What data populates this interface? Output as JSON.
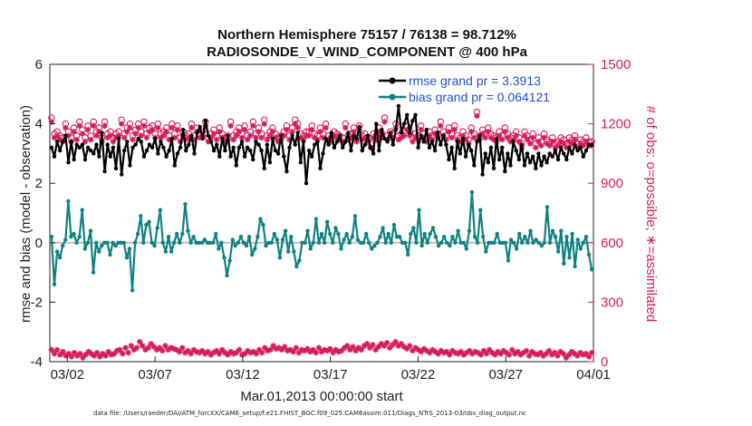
{
  "chart_data": {
    "type": "line",
    "title": "Northern Hemisphere 75157 / 76138 = 98.712%",
    "subtitle": "RADIOSONDE_V_WIND_COMPONENT @ 400 hPa",
    "xlabel": "Mar.01,2013 00:00:00 start",
    "ylabel": "rmse and bias (model - observation)",
    "ylabel_right": "# of obs: o=possible; ∗=assimilated",
    "footer": "data file: /Users/raeder/DAI/ATM_forcXX/CAM6_setup/f.e21.FHIST_BGC.f09_025.CAM6assim.011/Diags_NTrS_2013-03/obs_diag_output.nc",
    "xlim": [
      0,
      31
    ],
    "ylim": [
      -4,
      6
    ],
    "ylim_right": [
      0,
      1500
    ],
    "x_ticks": [
      {
        "at": 1,
        "label": "03/02"
      },
      {
        "at": 6,
        "label": "03/07"
      },
      {
        "at": 11,
        "label": "03/12"
      },
      {
        "at": 16,
        "label": "03/17"
      },
      {
        "at": 21,
        "label": "03/22"
      },
      {
        "at": 26,
        "label": "03/27"
      },
      {
        "at": 31,
        "label": "04/01"
      }
    ],
    "y_ticks": [
      "-4",
      "-2",
      "0",
      "2",
      "4",
      "6"
    ],
    "y_ticks_right": [
      "0",
      "300",
      "600",
      "900",
      "1200",
      "1500"
    ],
    "legend": [
      "rmse grand pr = 3.3913",
      "bias grand pr = 0.064121"
    ],
    "colors": {
      "rmse": "#000000",
      "bias": "#0f8181",
      "obs": "#d61b5c",
      "zero": "#bfbfbf"
    },
    "series": [
      {
        "name": "rmse",
        "axis": "left",
        "values": [
          3.2,
          2.9,
          3.4,
          3.1,
          3.4,
          3.6,
          2.7,
          3.4,
          2.8,
          3.3,
          3.2,
          3.3,
          2.8,
          3.2,
          3.1,
          3.0,
          3.3,
          2.9,
          3.7,
          2.4,
          3.3,
          2.9,
          3.2,
          2.5,
          3.5,
          2.3,
          3.1,
          3.4,
          2.6,
          3.2,
          3.3,
          3.5,
          3.4,
          2.9,
          3.1,
          3.3,
          3.2,
          3.5,
          3.0,
          3.4,
          3.2,
          2.9,
          3.1,
          3.5,
          2.6,
          3.0,
          3.2,
          3.8,
          3.1,
          3.3,
          3.6,
          3.0,
          3.7,
          3.9,
          3.5,
          4.1,
          3.6,
          3.4,
          3.1,
          3.3,
          2.9,
          3.5,
          3.1,
          3.6,
          2.9,
          3.2,
          2.6,
          3.2,
          3.4,
          2.9,
          3.2,
          3.1,
          2.8,
          3.4,
          3.3,
          3.1,
          2.5,
          3.3,
          2.7,
          3.5,
          3.1,
          3.0,
          3.6,
          2.9,
          2.4,
          3.2,
          3.6,
          3.3,
          3.7,
          2.7,
          3.4,
          2.0,
          3.1,
          2.9,
          3.3,
          3.4,
          2.5,
          3.0,
          3.5,
          3.3,
          3.7,
          3.2,
          3.4,
          3.6,
          3.2,
          3.4,
          3.7,
          3.1,
          3.6,
          3.5,
          3.9,
          3.1,
          3.3,
          3.6,
          3.2,
          3.0,
          4.0,
          3.1,
          3.8,
          3.5,
          3.4,
          3.7,
          3.3,
          3.8,
          4.6,
          3.7,
          4.0,
          4.3,
          3.7,
          4.1,
          4.3,
          3.2,
          3.6,
          3.4,
          3.8,
          3.2,
          3.4,
          3.1,
          3.7,
          3.3,
          3.6,
          3.3,
          2.8,
          3.2,
          2.5,
          3.4,
          3.0,
          3.5,
          2.9,
          3.3,
          3.1,
          2.6,
          3.4,
          3.6,
          2.3,
          3.0,
          2.7,
          3.2,
          2.5,
          3.5,
          2.8,
          3.2,
          2.4,
          3.0,
          2.6,
          3.4,
          3.1,
          2.8,
          3.3,
          2.6,
          3.0,
          2.7,
          2.9,
          2.5,
          3.0,
          2.6,
          2.9,
          2.7,
          3.0,
          2.9,
          3.1,
          2.8,
          3.2,
          3.0,
          2.8,
          3.2,
          3.0,
          3.3,
          3.1,
          3.2,
          2.9,
          3.1,
          3.3,
          3.3
        ]
      },
      {
        "name": "bias",
        "axis": "left",
        "values": [
          0.2,
          -1.4,
          -0.3,
          -0.5,
          -0.1,
          0.1,
          1.4,
          0.2,
          0.3,
          0.0,
          0.2,
          1.1,
          -0.2,
          0.0,
          0.4,
          -1.0,
          0.0,
          -0.3,
          -0.1,
          0.0,
          0.0,
          -0.4,
          0.0,
          -0.1,
          0.0,
          0.0,
          0.0,
          -0.5,
          -0.2,
          -1.6,
          0.0,
          0.3,
          0.9,
          0.0,
          0.6,
          0.7,
          0.0,
          -0.1,
          0.5,
          1.1,
          0.0,
          -0.3,
          0.2,
          -0.3,
          0.0,
          0.3,
          0.0,
          0.3,
          1.3,
          0.4,
          0.0,
          0.2,
          0.0,
          0.0,
          0.0,
          0.1,
          0.0,
          0.0,
          0.0,
          0.3,
          -0.2,
          0.0,
          -0.5,
          -1.1,
          -0.6,
          0.1,
          -0.1,
          0.0,
          0.2,
          0.0,
          -0.1,
          0.2,
          -0.4,
          -0.2,
          0.2,
          0.8,
          0.6,
          -0.1,
          0.0,
          0.0,
          0.3,
          0.1,
          -0.5,
          0.1,
          0.4,
          -0.3,
          0.2,
          -0.3,
          -0.8,
          -0.6,
          0.0,
          0.0,
          0.4,
          -0.2,
          0.0,
          0.8,
          0.0,
          0.3,
          0.0,
          0.7,
          0.3,
          0.0,
          0.5,
          0.3,
          -0.2,
          0.1,
          0.3,
          0.0,
          0.2,
          0.9,
          0.1,
          0.0,
          0.0,
          0.3,
          0.0,
          -0.2,
          -0.1,
          0.0,
          0.2,
          0.5,
          0.0,
          0.3,
          0.0,
          0.6,
          0.2,
          0.2,
          0.0,
          0.0,
          -0.4,
          0.3,
          0.5,
          0.0,
          1.1,
          -0.1,
          0.3,
          0.0,
          0.3,
          0.5,
          0.2,
          -0.1,
          0.0,
          0.2,
          0.0,
          -0.1,
          0.2,
          0.0,
          0.4,
          0.0,
          0.0,
          -0.2,
          0.4,
          1.7,
          0.2,
          0.0,
          1.1,
          0.2,
          -0.3,
          0.0,
          0.0,
          0.0,
          0.3,
          0.0,
          0.0,
          0.0,
          -0.6,
          0.1,
          0.0,
          -0.2,
          0.3,
          0.0,
          0.2,
          0.0,
          0.4,
          0.0,
          0.1,
          0.0,
          -0.1,
          0.0,
          1.2,
          0.0,
          0.4,
          0.2,
          -0.3,
          0.4,
          -0.7,
          0.2,
          -0.5,
          0.3,
          -0.8,
          0.1,
          -0.2,
          0.0,
          0.2,
          -0.4,
          -0.9
        ]
      },
      {
        "name": "possible",
        "axis": "right",
        "values": [
          1230,
          1150,
          1160,
          1140,
          1130,
          1200,
          1160,
          1130,
          1180,
          1140,
          1210,
          1170,
          1130,
          1190,
          1140,
          1210,
          1160,
          1180,
          1130,
          1210,
          1150,
          1160,
          1130,
          1150,
          1160,
          1220,
          1150,
          1180,
          1200,
          1140,
          1170,
          1200,
          1160,
          1210,
          1150,
          1180,
          1190,
          1150,
          1200,
          1150,
          1160,
          1180,
          1140,
          1200,
          1150,
          1190,
          1130,
          1160,
          1140,
          1150,
          1200,
          1140,
          1180,
          1150,
          1160,
          1210,
          1130,
          1150,
          1170,
          1140,
          1180,
          1150,
          1130,
          1140,
          1210,
          1140,
          1160,
          1180,
          1150,
          1190,
          1140,
          1160,
          1210,
          1150,
          1180,
          1150,
          1220,
          1140,
          1160,
          1180,
          1150,
          1130,
          1140,
          1160,
          1190,
          1140,
          1180,
          1220,
          1200,
          1150,
          1140,
          1160,
          1160,
          1190,
          1150,
          1140,
          1180,
          1150,
          1200,
          1140,
          1130,
          1160,
          1150,
          1140,
          1130,
          1200,
          1140,
          1150,
          1180,
          1130,
          1190,
          1140,
          1150,
          1130,
          1100,
          1150,
          1140,
          1180,
          1150,
          1230,
          1140,
          1160,
          1150,
          1200,
          1140,
          1150,
          1160,
          1190,
          1160,
          1130,
          1150,
          1140,
          1190,
          1150,
          1130,
          1160,
          1140,
          1170,
          1150,
          1210,
          1160,
          1140,
          1180,
          1150,
          1190,
          1140,
          1130,
          1160,
          1140,
          1120,
          1180,
          1150,
          1260,
          1140,
          1170,
          1150,
          1180,
          1150,
          1140,
          1130,
          1160,
          1140,
          1180,
          1150,
          1130,
          1140,
          1160,
          1130,
          1100,
          1160,
          1140,
          1120,
          1150,
          1100,
          1130,
          1110,
          1150,
          1120,
          1110,
          1130,
          1100,
          1110,
          1130,
          1120,
          1100,
          1130,
          1120,
          1140,
          1100,
          1120,
          1110,
          1130,
          1110,
          1110
        ]
      },
      {
        "name": "assimilated",
        "axis": "right",
        "values": [
          1210,
          1130,
          1140,
          1120,
          1110,
          1180,
          1140,
          1110,
          1160,
          1120,
          1190,
          1150,
          1110,
          1170,
          1120,
          1190,
          1140,
          1160,
          1110,
          1190,
          1130,
          1140,
          1110,
          1130,
          1140,
          1200,
          1130,
          1160,
          1180,
          1120,
          1150,
          1180,
          1140,
          1190,
          1130,
          1160,
          1170,
          1130,
          1180,
          1130,
          1140,
          1160,
          1120,
          1180,
          1130,
          1170,
          1110,
          1140,
          1120,
          1130,
          1180,
          1120,
          1160,
          1130,
          1140,
          1190,
          1110,
          1130,
          1150,
          1120,
          1160,
          1130,
          1110,
          1120,
          1190,
          1120,
          1140,
          1160,
          1130,
          1170,
          1120,
          1140,
          1190,
          1130,
          1160,
          1130,
          1200,
          1120,
          1140,
          1160,
          1130,
          1110,
          1120,
          1140,
          1170,
          1120,
          1160,
          1200,
          1180,
          1130,
          1120,
          1140,
          1140,
          1170,
          1130,
          1120,
          1160,
          1130,
          1180,
          1120,
          1110,
          1140,
          1130,
          1120,
          1110,
          1180,
          1120,
          1130,
          1160,
          1110,
          1170,
          1120,
          1130,
          1110,
          1080,
          1130,
          1120,
          1160,
          1130,
          1210,
          1120,
          1140,
          1130,
          1180,
          1120,
          1130,
          1140,
          1170,
          1140,
          1110,
          1130,
          1120,
          1170,
          1130,
          1110,
          1140,
          1120,
          1150,
          1130,
          1190,
          1140,
          1120,
          1160,
          1130,
          1170,
          1120,
          1110,
          1140,
          1120,
          1100,
          1160,
          1130,
          1240,
          1120,
          1150,
          1130,
          1160,
          1130,
          1120,
          1110,
          1140,
          1120,
          1160,
          1130,
          1110,
          1120,
          1140,
          1110,
          1080,
          1140,
          1120,
          1100,
          1130,
          1080,
          1110,
          1090,
          1130,
          1100,
          1090,
          1110,
          1080,
          1090,
          1110,
          1100,
          1080,
          1110,
          1100,
          1120,
          1080,
          1100,
          1090,
          1110,
          1090,
          1090
        ]
      },
      {
        "name": "low_count",
        "axis": "right",
        "values": [
          60,
          40,
          60,
          35,
          50,
          30,
          40,
          25,
          45,
          30,
          40,
          20,
          35,
          50,
          40,
          30,
          45,
          25,
          40,
          30,
          50,
          35,
          40,
          55,
          60,
          40,
          70,
          45,
          80,
          60,
          70,
          100,
          80,
          60,
          70,
          90,
          75,
          60,
          70,
          55,
          80,
          60,
          70,
          65,
          60,
          50,
          70,
          45,
          55,
          40,
          60,
          50,
          45,
          55,
          40,
          50,
          35,
          45,
          55,
          40,
          60,
          45,
          35,
          50,
          40,
          45,
          60,
          35,
          40,
          55,
          45,
          50,
          40,
          60,
          45,
          70,
          55,
          60,
          80,
          65,
          70,
          60,
          75,
          55,
          60,
          50,
          70,
          45,
          60,
          55,
          65,
          50,
          60,
          45,
          70,
          50,
          60,
          55,
          65,
          45,
          60,
          50,
          55,
          70,
          80,
          60,
          75,
          55,
          70,
          60,
          80,
          90,
          70,
          85,
          60,
          75,
          90,
          80,
          95,
          70,
          85,
          100,
          80,
          90,
          75,
          65,
          80,
          55,
          70,
          60,
          50,
          65,
          55,
          45,
          60,
          50,
          40,
          55,
          45,
          50,
          35,
          55,
          45,
          40,
          50,
          35,
          45,
          55,
          40,
          50,
          45,
          35,
          55,
          40,
          60,
          45,
          35,
          50,
          40,
          55,
          45,
          35,
          60,
          40,
          50,
          35,
          45,
          55,
          30,
          50,
          40,
          35,
          45,
          30,
          40,
          55,
          35,
          45,
          30,
          50,
          40,
          20,
          35,
          50,
          40,
          30,
          45,
          35,
          40,
          25,
          45
        ]
      }
    ]
  }
}
